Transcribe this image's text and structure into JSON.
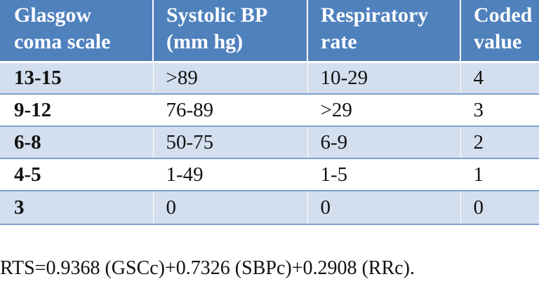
{
  "table": {
    "headers": [
      [
        "Glasgow",
        "coma scale"
      ],
      [
        "Systolic BP",
        "(mm hg)"
      ],
      [
        "Respiratory",
        "rate"
      ],
      [
        "Coded",
        "value"
      ]
    ],
    "rows": [
      [
        "13-15",
        ">89",
        "10-29",
        "4"
      ],
      [
        "9-12",
        "76-89",
        ">29",
        "3"
      ],
      [
        "6-8",
        "50-75",
        "6-9",
        "2"
      ],
      [
        "4-5",
        "1-49",
        "1-5",
        "1"
      ],
      [
        "3",
        "0",
        "0",
        "0"
      ]
    ]
  },
  "formula": "RTS=0.9368 (GSCc)+0.7326 (SBPc)+0.2908 (RRc).",
  "colors": {
    "header_bg": "#4f81bd",
    "band_bg": "#d3dfee",
    "rule": "#7ba0cd"
  }
}
